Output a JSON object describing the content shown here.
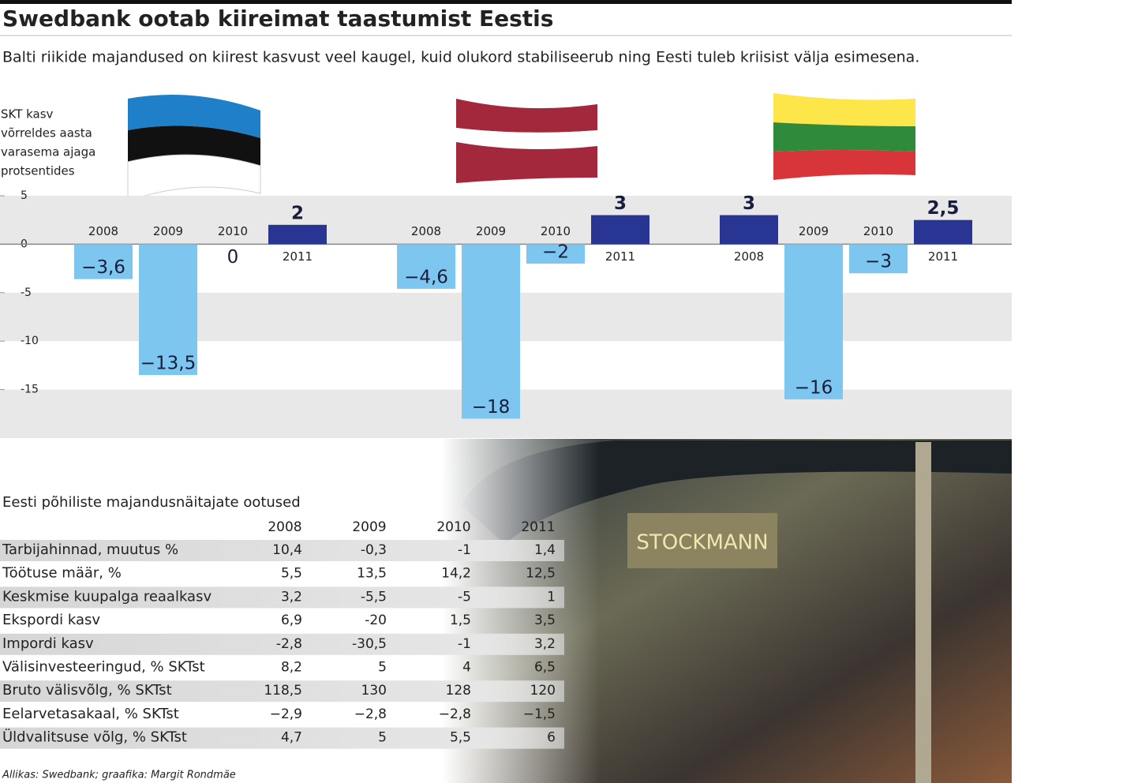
{
  "title": "Swedbank ootab kiireimat taastumist Eestis",
  "subtitle": "Balti riikide majandused on kiirest kasvust veel kaugel, kuid olukord stabiliseerub ning Eesti tuleb kriisist välja esimesena.",
  "chart_data": {
    "type": "bar",
    "y_label": [
      "SKT kasv",
      "võrreldes aasta",
      "varasema ajaga",
      "protsentides"
    ],
    "categories": [
      "2008",
      "2009",
      "2010",
      "2011"
    ],
    "ylim": [
      -20,
      5
    ],
    "yticks": [
      5,
      0,
      -5,
      -10,
      -15
    ],
    "positive_color": "#283593",
    "negative_color": "#7cc6f0",
    "series": [
      {
        "values": [
          -3.6,
          -13.5,
          0,
          2
        ],
        "value_labels": [
          "−3,6",
          "−13,5",
          "0",
          "2"
        ]
      },
      {
        "values": [
          -4.6,
          -18,
          -2,
          3
        ],
        "value_labels": [
          "−4,6",
          "−18",
          "−2",
          "3"
        ]
      },
      {
        "values": [
          3,
          -16,
          -3,
          2.5
        ],
        "value_labels": [
          "3",
          "−16",
          "−3",
          "2,5"
        ]
      }
    ]
  },
  "table": {
    "title": "Eesti põhiliste majandusnäitajate ootused",
    "columns": [
      "2008",
      "2009",
      "2010",
      "2011"
    ],
    "rows": [
      [
        "Tarbijahinnad, muutus %",
        "10,4",
        "-0,3",
        "-1",
        "1,4"
      ],
      [
        "Töötuse määr, %",
        "5,5",
        "13,5",
        "14,2",
        "12,5"
      ],
      [
        "Keskmise kuupalga reaalkasv",
        "3,2",
        "-5,5",
        "-5",
        "1"
      ],
      [
        "Ekspordi kasv",
        "6,9",
        "-20",
        "1,5",
        "3,5"
      ],
      [
        "Impordi kasv",
        "-2,8",
        "-30,5",
        "-1",
        "3,2"
      ],
      [
        "Välisinvesteeringud, % SKTst",
        "8,2",
        "5",
        "4",
        "6,5"
      ],
      [
        "Bruto välisvõlg, % SKTst",
        "118,5",
        "130",
        "128",
        "120"
      ],
      [
        "Eelarvetasakaal, % SKTst",
        "−2,9",
        "−2,8",
        "−2,8",
        "−1,5"
      ],
      [
        "Üldvalitsuse võlg, % SKTst",
        "4,7",
        "5",
        "5,5",
        "6"
      ]
    ]
  },
  "photo_sign": "STOCKMANN",
  "source": "Allikas: Swedbank; graafika: Margit Rondmäe"
}
